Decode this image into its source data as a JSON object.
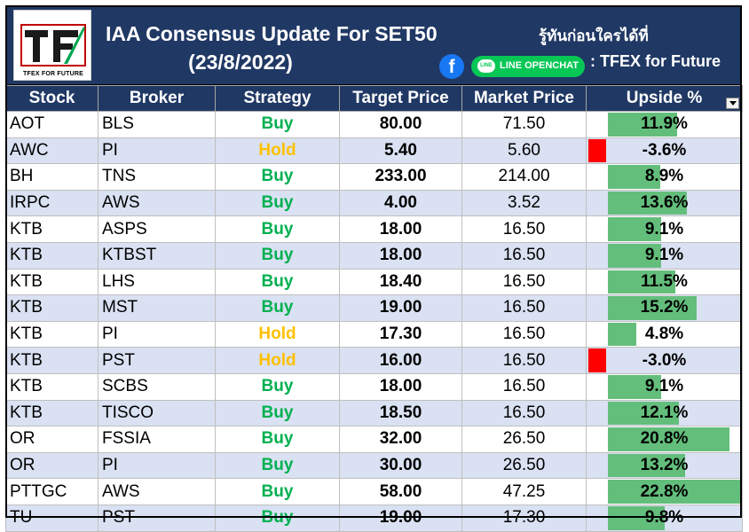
{
  "logo": {
    "letters": "TF",
    "caption": "TFEX FOR FUTURE"
  },
  "title_line1": "IAA Consensus Update For SET50",
  "title_line2": "(23/8/2022)",
  "thai_tagline": "รู้ทันก่อนใครได้ที่",
  "facebook_glyph": "f",
  "line_chip": {
    "icon_text": "LINE",
    "label": "LINE OPENCHAT"
  },
  "tfex_label": ": TFEX for Future",
  "columns": [
    "Stock",
    "Broker",
    "Strategy",
    "Target Price",
    "Market Price",
    "Upside %"
  ],
  "colors": {
    "header_bg": "#203864",
    "buy": "#00b050",
    "hold": "#ffc000",
    "bar_positive": "#63be7b",
    "bar_negative": "#ff0000",
    "alt_row": "#d9e1f2"
  },
  "rows": [
    {
      "stock": "AOT",
      "broker": "BLS",
      "strategy": "Buy",
      "target": "80.00",
      "market": "71.50",
      "upside": "11.9%",
      "upside_value": 11.9
    },
    {
      "stock": "AWC",
      "broker": "PI",
      "strategy": "Hold",
      "target": "5.40",
      "market": "5.60",
      "upside": "-3.6%",
      "upside_value": -3.6
    },
    {
      "stock": "BH",
      "broker": "TNS",
      "strategy": "Buy",
      "target": "233.00",
      "market": "214.00",
      "upside": "8.9%",
      "upside_value": 8.9
    },
    {
      "stock": "IRPC",
      "broker": "AWS",
      "strategy": "Buy",
      "target": "4.00",
      "market": "3.52",
      "upside": "13.6%",
      "upside_value": 13.6
    },
    {
      "stock": "KTB",
      "broker": "ASPS",
      "strategy": "Buy",
      "target": "18.00",
      "market": "16.50",
      "upside": "9.1%",
      "upside_value": 9.1
    },
    {
      "stock": "KTB",
      "broker": "KTBST",
      "strategy": "Buy",
      "target": "18.00",
      "market": "16.50",
      "upside": "9.1%",
      "upside_value": 9.1
    },
    {
      "stock": "KTB",
      "broker": "LHS",
      "strategy": "Buy",
      "target": "18.40",
      "market": "16.50",
      "upside": "11.5%",
      "upside_value": 11.5
    },
    {
      "stock": "KTB",
      "broker": "MST",
      "strategy": "Buy",
      "target": "19.00",
      "market": "16.50",
      "upside": "15.2%",
      "upside_value": 15.2
    },
    {
      "stock": "KTB",
      "broker": "PI",
      "strategy": "Hold",
      "target": "17.30",
      "market": "16.50",
      "upside": "4.8%",
      "upside_value": 4.8
    },
    {
      "stock": "KTB",
      "broker": "PST",
      "strategy": "Hold",
      "target": "16.00",
      "market": "16.50",
      "upside": "-3.0%",
      "upside_value": -3.0
    },
    {
      "stock": "KTB",
      "broker": "SCBS",
      "strategy": "Buy",
      "target": "18.00",
      "market": "16.50",
      "upside": "9.1%",
      "upside_value": 9.1
    },
    {
      "stock": "KTB",
      "broker": "TISCO",
      "strategy": "Buy",
      "target": "18.50",
      "market": "16.50",
      "upside": "12.1%",
      "upside_value": 12.1
    },
    {
      "stock": "OR",
      "broker": "FSSIA",
      "strategy": "Buy",
      "target": "32.00",
      "market": "26.50",
      "upside": "20.8%",
      "upside_value": 20.8
    },
    {
      "stock": "OR",
      "broker": "PI",
      "strategy": "Buy",
      "target": "30.00",
      "market": "26.50",
      "upside": "13.2%",
      "upside_value": 13.2
    },
    {
      "stock": "PTTGC",
      "broker": "AWS",
      "strategy": "Buy",
      "target": "58.00",
      "market": "47.25",
      "upside": "22.8%",
      "upside_value": 22.8
    },
    {
      "stock": "TU",
      "broker": "PST",
      "strategy": "Buy",
      "target": "19.00",
      "market": "17.30",
      "upside": "9.8%",
      "upside_value": 9.8
    }
  ]
}
